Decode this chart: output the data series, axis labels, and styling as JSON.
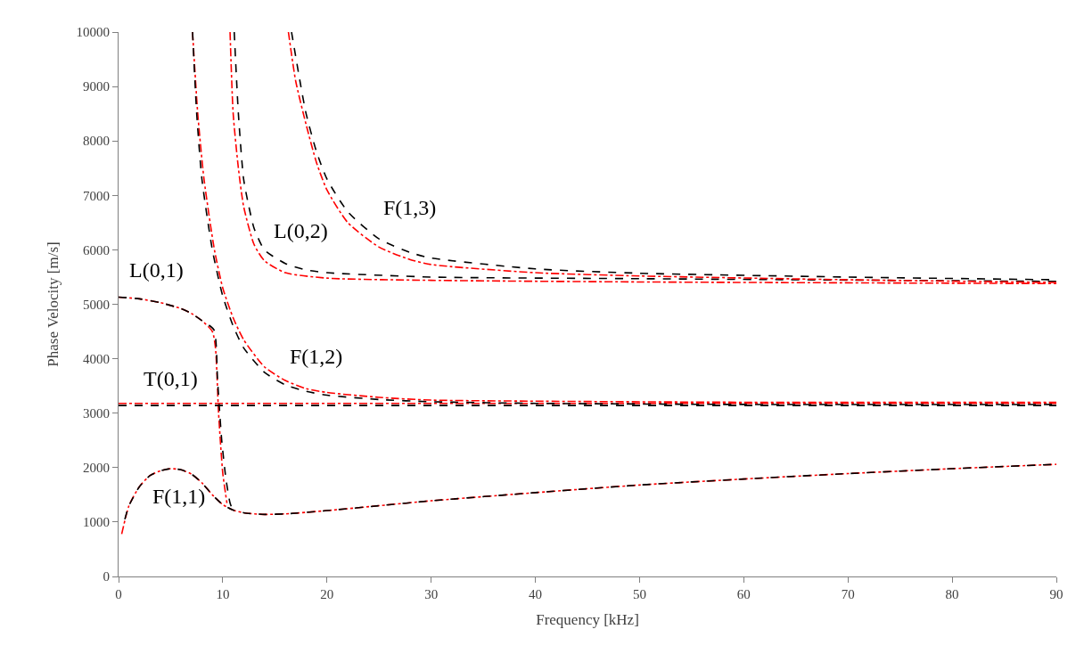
{
  "chart_data": {
    "type": "line",
    "xlabel": "Frequency [kHz]",
    "ylabel": "Phase Velocity [m/s]",
    "xlim": [
      0,
      90
    ],
    "xticks": [
      0,
      10,
      20,
      30,
      40,
      50,
      60,
      70,
      80,
      90
    ],
    "ylim": [
      0,
      10000
    ],
    "yticks": [
      0,
      1000,
      2000,
      3000,
      4000,
      5000,
      6000,
      7000,
      8000,
      9000,
      10000
    ],
    "grid": false,
    "marker": "none",
    "series": [
      {
        "color": "#ff0000",
        "line_style": "dashdot",
        "x": [
          0.3,
          1,
          2,
          3,
          4,
          5,
          6,
          7,
          8,
          9,
          10,
          11,
          12,
          13,
          14,
          16,
          20,
          25,
          30,
          40,
          50,
          60,
          70,
          80,
          90
        ],
        "values": [
          780,
          1300,
          1650,
          1850,
          1940,
          1980,
          1960,
          1880,
          1720,
          1500,
          1320,
          1220,
          1170,
          1150,
          1140,
          1150,
          1210,
          1300,
          1390,
          1540,
          1680,
          1790,
          1890,
          1980,
          2060
        ]
      },
      {
        "color": "#000000",
        "line_style": "dashed",
        "x": [
          0.6,
          1,
          2,
          3,
          4,
          5,
          6,
          7,
          8,
          9,
          10,
          11,
          12,
          13,
          14,
          16,
          20,
          25,
          30,
          40,
          50,
          60,
          70,
          80,
          90
        ],
        "values": [
          1050,
          1300,
          1650,
          1850,
          1940,
          1980,
          1960,
          1880,
          1720,
          1500,
          1320,
          1220,
          1170,
          1150,
          1140,
          1150,
          1210,
          1300,
          1390,
          1540,
          1680,
          1790,
          1890,
          1980,
          2060
        ]
      },
      {
        "color": "#ff0000",
        "line_style": "dashdot",
        "x": [
          0,
          2,
          4,
          6,
          7,
          8,
          9,
          9.3,
          9.6,
          10,
          10.4
        ],
        "values": [
          5130,
          5100,
          5030,
          4920,
          4830,
          4700,
          4500,
          4200,
          3000,
          1900,
          1350
        ]
      },
      {
        "color": "#000000",
        "line_style": "dashed",
        "x": [
          0,
          2,
          4,
          6,
          7,
          8,
          9.15,
          9.5,
          9.9,
          10.3,
          10.7,
          11
        ],
        "values": [
          5130,
          5100,
          5030,
          4920,
          4830,
          4700,
          4530,
          3600,
          2500,
          1800,
          1350,
          1200
        ]
      },
      {
        "color": "#ff0000",
        "line_style": "dashdot",
        "x": [
          0,
          90
        ],
        "values": [
          3180,
          3180
        ]
      },
      {
        "color": "#000000",
        "line_style": "dashed",
        "x": [
          0,
          90
        ],
        "values": [
          3140,
          3140
        ]
      },
      {
        "color": "#ff0000",
        "line_style": "dashdot",
        "x": [
          7.1,
          7.6,
          8.2,
          9.2,
          10,
          11,
          12,
          14,
          16,
          18,
          20,
          25,
          30,
          40,
          60,
          90
        ],
        "values": [
          10000,
          8500,
          7300,
          6000,
          5300,
          4750,
          4350,
          3850,
          3600,
          3450,
          3380,
          3290,
          3240,
          3220,
          3200,
          3200
        ]
      },
      {
        "color": "#000000",
        "line_style": "dashed",
        "x": [
          7.1,
          7.5,
          8,
          9,
          10,
          11,
          12,
          14,
          16,
          18,
          20,
          25,
          30,
          40,
          60,
          90
        ],
        "values": [
          10000,
          8500,
          7300,
          6000,
          5150,
          4600,
          4200,
          3750,
          3520,
          3400,
          3330,
          3250,
          3210,
          3180,
          3160,
          3160
        ]
      },
      {
        "color": "#ff0000",
        "line_style": "dashdot",
        "x": [
          10.7,
          11,
          11.5,
          12,
          13,
          14,
          16,
          20,
          30,
          50,
          90
        ],
        "values": [
          10000,
          8500,
          7500,
          6800,
          6100,
          5800,
          5580,
          5480,
          5440,
          5410,
          5380
        ]
      },
      {
        "color": "#000000",
        "line_style": "dashed",
        "x": [
          11.1,
          11.5,
          12,
          12.5,
          13,
          14,
          16,
          18,
          20,
          30,
          50,
          90
        ],
        "values": [
          10000,
          8500,
          7300,
          6800,
          6400,
          6000,
          5750,
          5630,
          5580,
          5500,
          5470,
          5420
        ]
      },
      {
        "color": "#ff0000",
        "line_style": "dashdot",
        "x": [
          16.3,
          17,
          18,
          19,
          20,
          22,
          25,
          28,
          30,
          40,
          50,
          70,
          90
        ],
        "values": [
          10000,
          9100,
          8300,
          7600,
          7100,
          6500,
          6050,
          5820,
          5730,
          5580,
          5520,
          5450,
          5400
        ]
      },
      {
        "color": "#000000",
        "line_style": "dashed",
        "x": [
          16.6,
          17.5,
          18,
          19,
          20,
          22,
          25,
          28,
          30,
          40,
          50,
          70,
          90
        ],
        "values": [
          10000,
          9000,
          8500,
          7800,
          7300,
          6700,
          6200,
          5950,
          5850,
          5650,
          5570,
          5500,
          5450
        ]
      }
    ],
    "annotations": [
      "L(0,1)",
      "T(0,1)",
      "F(1,1)",
      "F(1,2)",
      "L(0,2)",
      "F(1,3)"
    ]
  }
}
